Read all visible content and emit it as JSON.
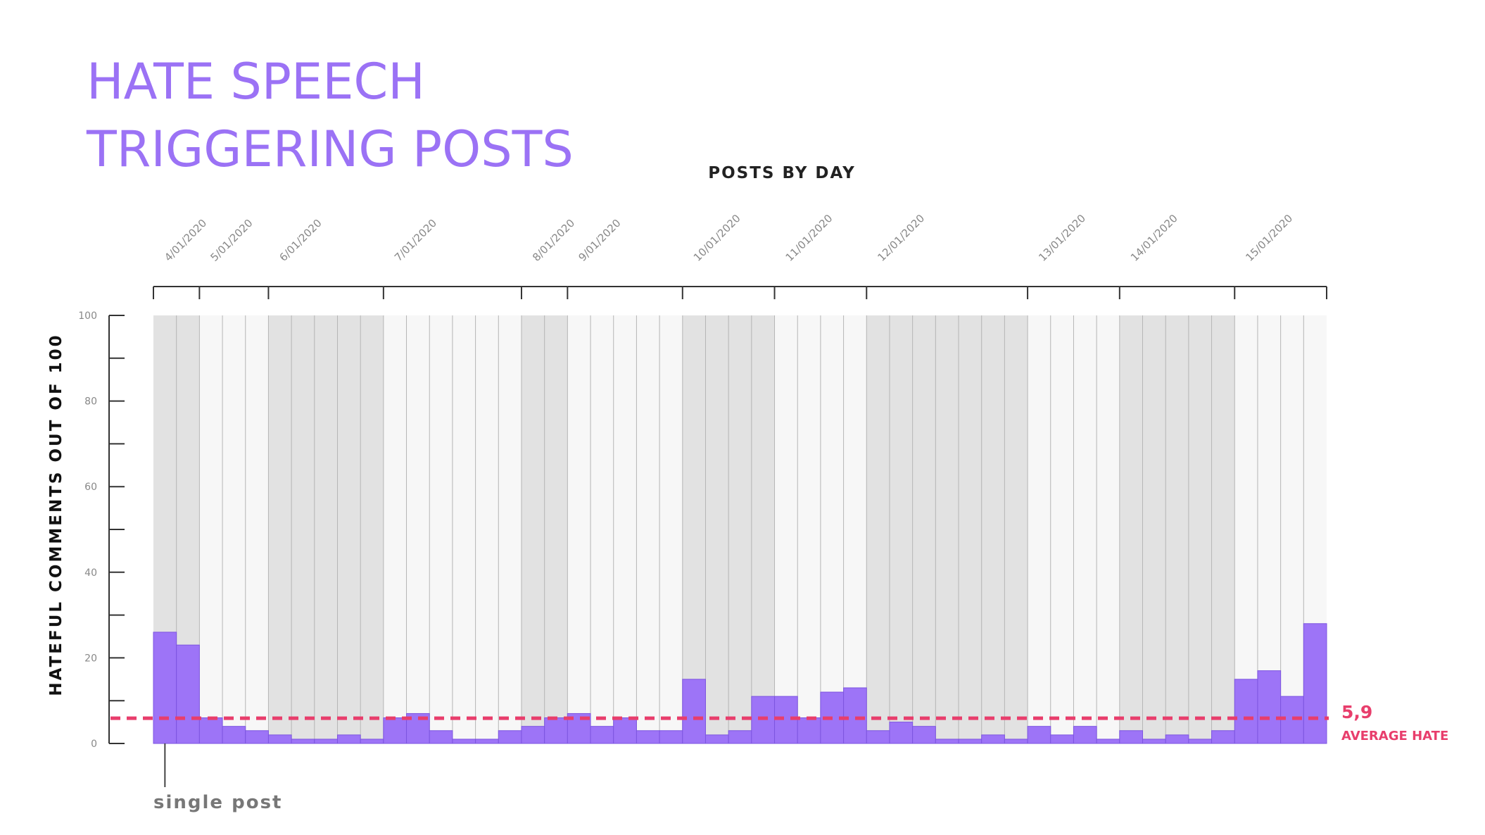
{
  "chart_data": {
    "type": "bar",
    "title_lines": [
      "HATE SPEECH",
      "TRIGGERING POSTS"
    ],
    "subtitle": "POSTS BY DAY",
    "y_label": "HATEFUL COMMENTS OUT OF 100",
    "groups": [
      {
        "label": "4/01/2020",
        "posts": 2
      },
      {
        "label": "5/01/2020",
        "posts": 3
      },
      {
        "label": "6/01/2020",
        "posts": 5
      },
      {
        "label": "7/01/2020",
        "posts": 6
      },
      {
        "label": "8/01/2020",
        "posts": 2
      },
      {
        "label": "9/01/2020",
        "posts": 5
      },
      {
        "label": "10/01/2020",
        "posts": 4
      },
      {
        "label": "11/01/2020",
        "posts": 4
      },
      {
        "label": "12/01/2020",
        "posts": 7
      },
      {
        "label": "13/01/2020",
        "posts": 4
      },
      {
        "label": "14/01/2020",
        "posts": 5
      },
      {
        "label": "15/01/2020",
        "posts": 4
      }
    ],
    "values": [
      26,
      23,
      6,
      4,
      3,
      2,
      1,
      1,
      2,
      1,
      6,
      7,
      3,
      1,
      1,
      3,
      4,
      6,
      7,
      4,
      6,
      3,
      3,
      15,
      2,
      3,
      11,
      11,
      6,
      12,
      13,
      3,
      5,
      4,
      1,
      1,
      2,
      1,
      4,
      2,
      4,
      1,
      3,
      1,
      2,
      1,
      3,
      15,
      17,
      11,
      28
    ],
    "color": "#9d74f7",
    "band_colors": [
      "#e2e2e2",
      "#f7f7f7"
    ],
    "ylim": [
      0,
      100
    ],
    "yticks": [
      0,
      20,
      40,
      60,
      80,
      100
    ],
    "minor_yticks": [
      10,
      30,
      50,
      70,
      90
    ],
    "average": {
      "value": 5.9,
      "label": "5,9",
      "name": "AVERAGE HATE",
      "color": "#e83e6c"
    },
    "annotation": "single post"
  }
}
